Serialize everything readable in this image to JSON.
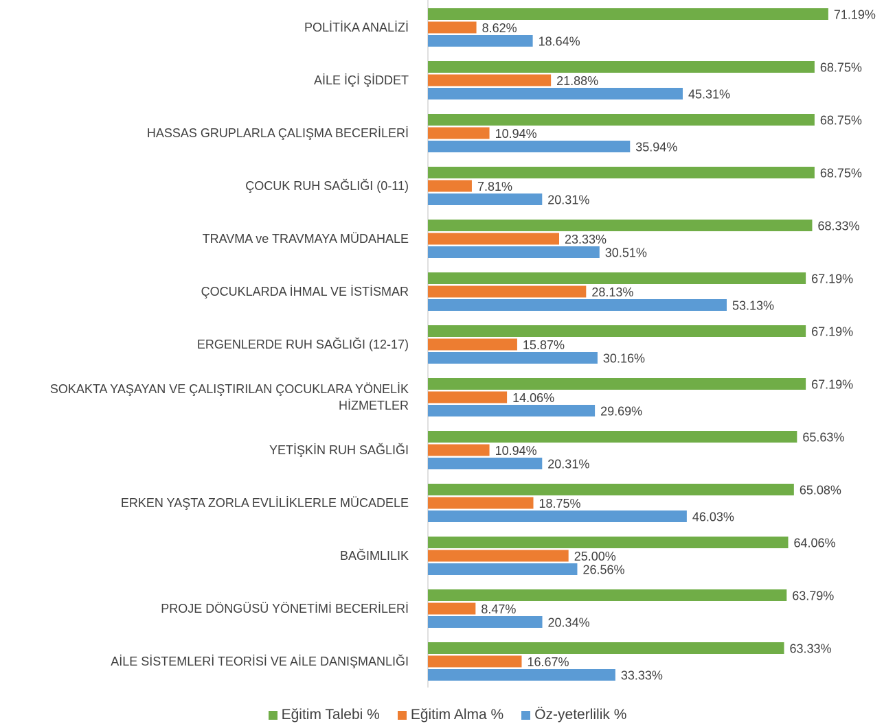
{
  "chart_data": {
    "type": "hbar",
    "categories": [
      "POLİTİKA ANALİZİ",
      "AİLE İÇİ ŞİDDET",
      "HASSAS GRUPLARLA ÇALIŞMA BECERİLERİ",
      "ÇOCUK RUH SAĞLIĞI (0-11)",
      "TRAVMA ve TRAVMAYA MÜDAHALE",
      "ÇOCUKLARDA İHMAL VE İSTİSMAR",
      "ERGENLERDE RUH SAĞLIĞI (12-17)",
      "SOKAKTA YAŞAYAN VE ÇALIŞTIRILAN ÇOCUKLARA YÖNELİK HİZMETLER",
      "YETİŞKİN RUH SAĞLIĞI",
      "ERKEN YAŞTA ZORLA EVLİLİKLERLE MÜCADELE",
      "BAĞIMLILIK",
      "PROJE DÖNGÜSÜ YÖNETİMİ BECERİLERİ",
      "AİLE SİSTEMLERİ TEORİSİ VE AİLE DANIŞMANLIĞI"
    ],
    "series": [
      {
        "name": "Eğitim Talebi %",
        "color": "#70ad47",
        "values": [
          71.19,
          68.75,
          68.75,
          68.75,
          68.33,
          67.19,
          67.19,
          67.19,
          65.63,
          65.08,
          64.06,
          63.79,
          63.33
        ],
        "value_labels": [
          "71.19%",
          "68.75%",
          "68.75%",
          "68.75%",
          "68.33%",
          "67.19%",
          "67.19%",
          "67.19%",
          "65.63%",
          "65.08%",
          "64.06%",
          "63.79%",
          "63.33%"
        ]
      },
      {
        "name": "Eğitim Alma %",
        "color": "#ed7d31",
        "values": [
          8.62,
          21.88,
          10.94,
          7.81,
          23.33,
          28.13,
          15.87,
          14.06,
          10.94,
          18.75,
          25.0,
          8.47,
          16.67
        ],
        "value_labels": [
          "8.62%",
          "21.88%",
          "10.94%",
          "7.81%",
          "23.33%",
          "28.13%",
          "15.87%",
          "14.06%",
          "10.94%",
          "18.75%",
          "25.00%",
          "8.47%",
          "16.67%"
        ]
      },
      {
        "name": "Öz-yeterlilik %",
        "color": "#5b9bd5",
        "values": [
          18.64,
          45.31,
          35.94,
          20.31,
          30.51,
          53.13,
          30.16,
          29.69,
          20.31,
          46.03,
          26.56,
          20.34,
          33.33
        ],
        "value_labels": [
          "18.64%",
          "45.31%",
          "35.94%",
          "20.31%",
          "30.51%",
          "53.13%",
          "30.16%",
          "29.69%",
          "20.31%",
          "46.03%",
          "26.56%",
          "20.34%",
          "33.33%"
        ]
      }
    ],
    "xlim": [
      0,
      80
    ],
    "legend": "bottom"
  }
}
